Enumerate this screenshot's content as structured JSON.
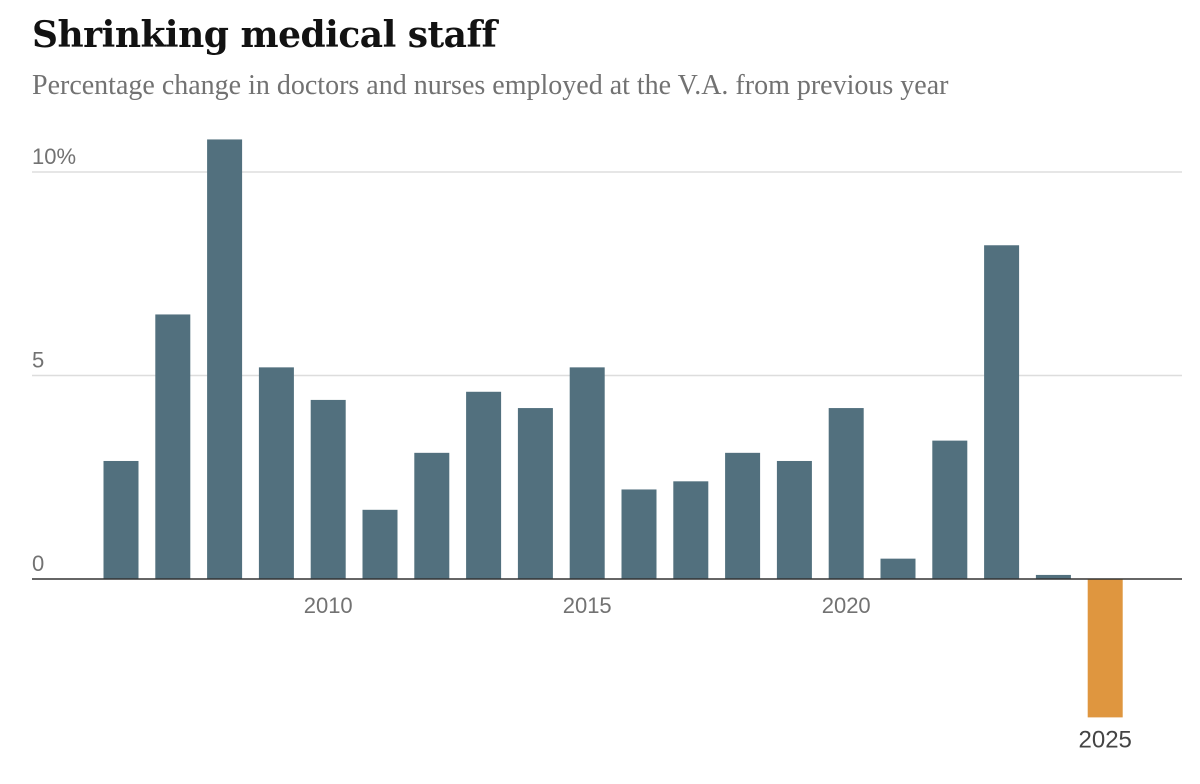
{
  "title": "Shrinking medical staff",
  "subtitle": "Percentage change in doctors and nurses employed at the V.A. from previous year",
  "colors": {
    "bar": "#52707e",
    "highlight": "#df963f",
    "grid": "#dddddd",
    "axis": "#333333",
    "tick": "#727272"
  },
  "chart_data": {
    "type": "bar",
    "title": "Shrinking medical staff",
    "subtitle": "Percentage change in doctors and nurses employed at the V.A. from previous year",
    "x": [
      2006,
      2007,
      2008,
      2009,
      2010,
      2011,
      2012,
      2013,
      2014,
      2015,
      2016,
      2017,
      2018,
      2019,
      2020,
      2021,
      2022,
      2023,
      2024,
      2025
    ],
    "values": [
      2.9,
      6.5,
      10.8,
      5.2,
      4.4,
      1.7,
      3.1,
      4.6,
      4.2,
      5.2,
      2.2,
      2.4,
      3.1,
      2.9,
      4.2,
      0.5,
      3.4,
      8.2,
      0.1,
      -3.4
    ],
    "highlight_x": 2025,
    "ylim": [
      -3.4,
      10.8
    ],
    "yticks": [
      {
        "value": 10,
        "label": "10%"
      },
      {
        "value": 5,
        "label": "5"
      },
      {
        "value": 0,
        "label": "0"
      }
    ],
    "xticks": [
      {
        "value": 2010,
        "label": "2010"
      },
      {
        "value": 2015,
        "label": "2015"
      },
      {
        "value": 2020,
        "label": "2020"
      }
    ],
    "highlight_label": "2025",
    "xlabel": "",
    "ylabel": ""
  }
}
